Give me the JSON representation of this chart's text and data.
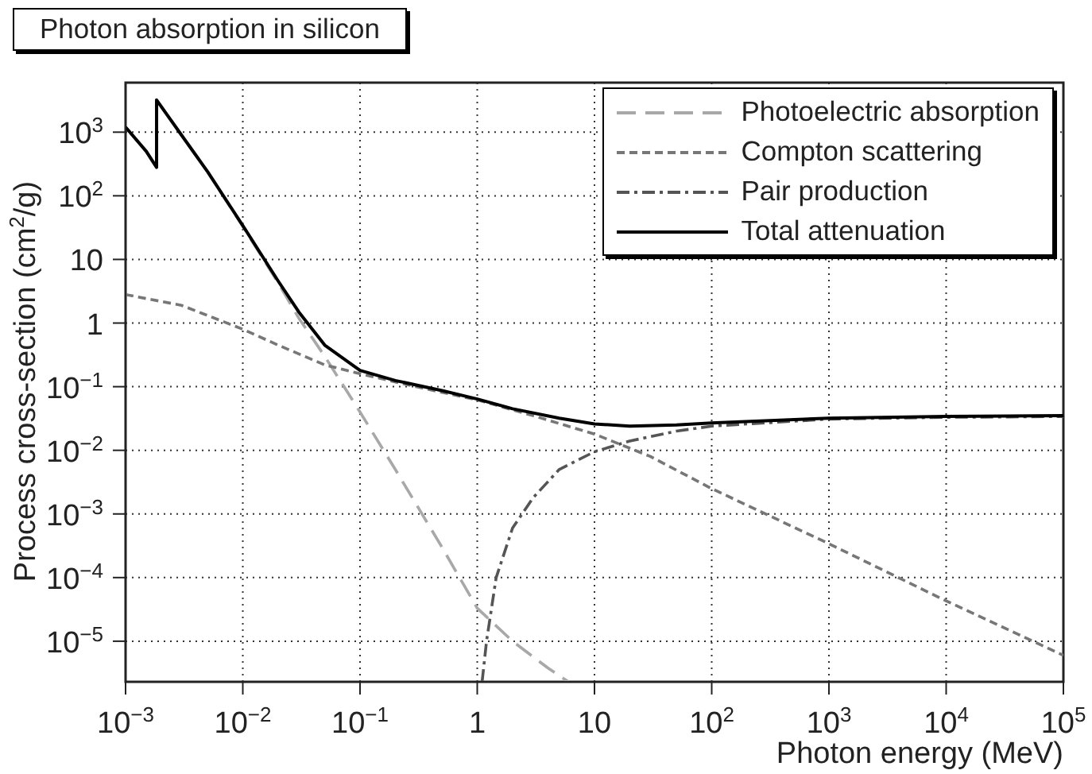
{
  "chart_data": {
    "type": "line",
    "title": "Photon absorption in silicon",
    "xlabel": "Photon energy (MeV)",
    "ylabel": "Process cross-section (cm$^{2}$/g)",
    "log": "xy",
    "grid": true,
    "legend": "top right",
    "xlim": [
      0.001,
      100000
    ],
    "ylim": [
      2.3e-06,
      6000
    ],
    "xticks": [
      {
        "value": 0.001,
        "label": "10$^{−3}$"
      },
      {
        "value": 0.01,
        "label": "10$^{−2}$"
      },
      {
        "value": 0.1,
        "label": "10$^{−1}$"
      },
      1,
      10,
      {
        "value": 100,
        "label": "10$^{2}$"
      },
      {
        "value": 1000,
        "label": "10$^{3}$"
      },
      {
        "value": 10000,
        "label": "10$^{4}$"
      },
      {
        "value": 100000,
        "label": "10$^{5}$"
      }
    ],
    "yticks": [
      {
        "value": 1e-05,
        "label": "10$^{−5}$"
      },
      {
        "value": 0.0001,
        "label": "10$^{−4}$"
      },
      {
        "value": 0.001,
        "label": "10$^{−3}$"
      },
      {
        "value": 0.01,
        "label": "10$^{−2}$"
      },
      {
        "value": 0.1,
        "label": "10$^{−1}$"
      },
      1,
      10,
      {
        "value": 100,
        "label": "10$^{2}$"
      },
      {
        "value": 1000,
        "label": "10$^{3}$"
      }
    ],
    "series": [
      {
        "name": "Photoelectric absorption",
        "color": "#a8a8a8",
        "line_style": "dashed",
        "x": [
          0.001,
          0.0015,
          0.001839,
          0.001839,
          0.003,
          0.005,
          0.01,
          0.02,
          0.03,
          0.05,
          0.1,
          0.2,
          0.5,
          1,
          2,
          4,
          6
        ],
        "values": [
          1200,
          500,
          280,
          3200,
          900,
          240,
          33,
          4.3,
          1.2,
          0.3,
          0.04,
          0.005,
          0.0003,
          3.3e-05,
          1e-05,
          3.8e-06,
          2.3e-06
        ]
      },
      {
        "name": "Compton scattering",
        "color": "#777777",
        "line_style": "dashed",
        "x": [
          0.001,
          0.003,
          0.01,
          0.02,
          0.05,
          0.1,
          0.3,
          1,
          3,
          10,
          30,
          100,
          1000,
          10000,
          100000
        ],
        "values": [
          2.8,
          1.9,
          0.8,
          0.45,
          0.22,
          0.16,
          0.1,
          0.062,
          0.035,
          0.018,
          0.008,
          0.0025,
          0.00034,
          4.3e-05,
          6e-06
        ]
      },
      {
        "name": "Pair production",
        "color": "#555555",
        "line_style": "dashdot",
        "x": [
          1.1,
          1.2,
          1.45,
          2,
          3,
          5,
          10,
          20,
          50,
          100,
          1000,
          10000,
          100000
        ],
        "values": [
          2.3e-06,
          1e-05,
          0.0001,
          0.0006,
          0.0018,
          0.005,
          0.0095,
          0.014,
          0.02,
          0.024,
          0.031,
          0.033,
          0.034
        ]
      },
      {
        "name": "Total attenuation",
        "color": "#000000",
        "line_style": "solid",
        "x": [
          0.001,
          0.0015,
          0.001839,
          0.001839,
          0.003,
          0.005,
          0.01,
          0.02,
          0.03,
          0.05,
          0.1,
          0.2,
          0.5,
          1,
          2,
          5,
          10,
          20,
          50,
          100,
          1000,
          10000,
          100000
        ],
        "values": [
          1200,
          500,
          280,
          3200,
          900,
          240,
          34,
          4.6,
          1.5,
          0.45,
          0.18,
          0.125,
          0.087,
          0.064,
          0.045,
          0.032,
          0.026,
          0.024,
          0.025,
          0.027,
          0.032,
          0.034,
          0.035
        ]
      }
    ]
  }
}
